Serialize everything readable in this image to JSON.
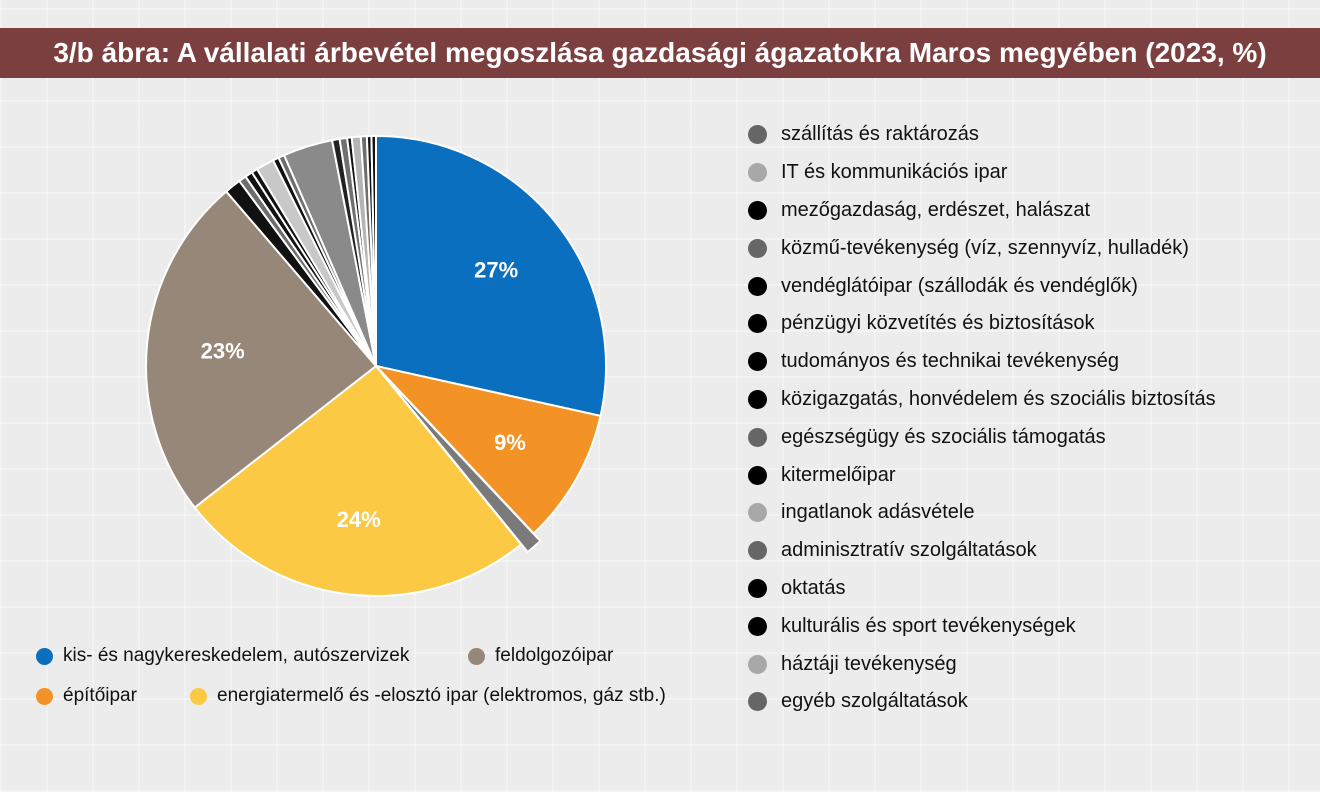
{
  "title": "3/b ábra: A vállalati árbevétel megoszlása gazdasági ágazatokra Maros megyében (2023, %)",
  "chart_data": {
    "type": "pie",
    "title": "3/b ábra: A vállalati árbevétel megoszlása gazdasági ágazatokra Maros megyében (2023, %)",
    "slices": [
      {
        "name": "kis- és nagykereskedelem, autószervizek",
        "value": 27,
        "label": "27%",
        "color": "#0a6fbf"
      },
      {
        "name": "építőipar",
        "value": 9,
        "label": "9%",
        "color": "#f39325"
      },
      {
        "name": "szállítás és raktározás",
        "value": 1.1,
        "label": "",
        "color": "#7a7a7a"
      },
      {
        "name": "energiatermelő és -elosztó ipar (elektromos, gáz stb.)",
        "value": 24,
        "label": "24%",
        "color": "#fbc944"
      },
      {
        "name": "feldolgozóipar",
        "value": 23,
        "label": "23%",
        "color": "#978779"
      },
      {
        "name": "mezőgazdaság, erdészet, halászat",
        "value": 1.1,
        "label": "",
        "color": "#111111"
      },
      {
        "name": "közmű-tevékenység (víz, szennyvíz, hulladék)",
        "value": 0.5,
        "label": "",
        "color": "#6e6e6e"
      },
      {
        "name": "vendéglátóipar (szállodák és vendéglők)",
        "value": 0.5,
        "label": "",
        "color": "#111111"
      },
      {
        "name": "pénzügyi közvetítés és biztosítások",
        "value": 0.4,
        "label": "",
        "color": "#111111"
      },
      {
        "name": "háztáji tevékenység",
        "value": 1.2,
        "label": "",
        "color": "#c8c8c8"
      },
      {
        "name": "tudományos és technikai tevékenység",
        "value": 0.4,
        "label": "",
        "color": "#111111"
      },
      {
        "name": "egyéb szolgáltatások",
        "value": 0.4,
        "label": "",
        "color": "#6e6e6e"
      },
      {
        "name": "IT és kommunikációs ipar",
        "value": 3.3,
        "label": "",
        "color": "#8a8a8a"
      },
      {
        "name": "közigazgatás, honvédelem és szociális biztosítás",
        "value": 0.5,
        "label": "",
        "color": "#222222"
      },
      {
        "name": "egészségügy és szociális támogatás",
        "value": 0.5,
        "label": "",
        "color": "#707070"
      },
      {
        "name": "kitermelőipar",
        "value": 0.3,
        "label": "",
        "color": "#111111"
      },
      {
        "name": "ingatlanok adásvétele",
        "value": 0.6,
        "label": "",
        "color": "#b5b5b5"
      },
      {
        "name": "adminisztratív szolgáltatások",
        "value": 0.4,
        "label": "",
        "color": "#6e6e6e"
      },
      {
        "name": "oktatás",
        "value": 0.3,
        "label": "",
        "color": "#111111"
      },
      {
        "name": "kulturális és sport tevékenységek",
        "value": 0.3,
        "label": "",
        "color": "#111111"
      }
    ]
  },
  "legend_bottom": [
    {
      "label": "kis- és nagykereskedelem, autószervizek",
      "color": "#0a6fbf"
    },
    {
      "label": "feldolgozóipar",
      "color": "#978779"
    },
    {
      "label": "építőipar",
      "color": "#f39325"
    },
    {
      "label": "energiatermelő és -elosztó ipar (elektromos, gáz stb.)",
      "color": "#fbc944"
    }
  ],
  "legend_right": [
    {
      "label": "szállítás és raktározás",
      "color": "#666666"
    },
    {
      "label": "IT és kommunikációs ipar",
      "color": "#a8a8a8"
    },
    {
      "label": "mezőgazdaság, erdészet, halászat",
      "color": "#000000"
    },
    {
      "label": "közmű-tevékenység (víz, szennyvíz, hulladék)",
      "color": "#666666"
    },
    {
      "label": "vendéglátóipar (szállodák és vendéglők)",
      "color": "#000000"
    },
    {
      "label": "pénzügyi közvetítés és biztosítások",
      "color": "#000000"
    },
    {
      "label": "tudományos és technikai tevékenység",
      "color": "#000000"
    },
    {
      "label": "közigazgatás, honvédelem és szociális biztosítás",
      "color": "#000000"
    },
    {
      "label": "egészségügy és szociális támogatás",
      "color": "#666666"
    },
    {
      "label": "kitermelőipar",
      "color": "#000000"
    },
    {
      "label": "ingatlanok adásvétele",
      "color": "#a8a8a8"
    },
    {
      "label": "adminisztratív szolgáltatások",
      "color": "#666666"
    },
    {
      "label": "oktatás",
      "color": "#000000"
    },
    {
      "label": "kulturális és sport tevékenységek",
      "color": "#000000"
    },
    {
      "label": "háztáji tevékenység",
      "color": "#a8a8a8"
    },
    {
      "label": "egyéb szolgáltatások",
      "color": "#666666"
    }
  ]
}
